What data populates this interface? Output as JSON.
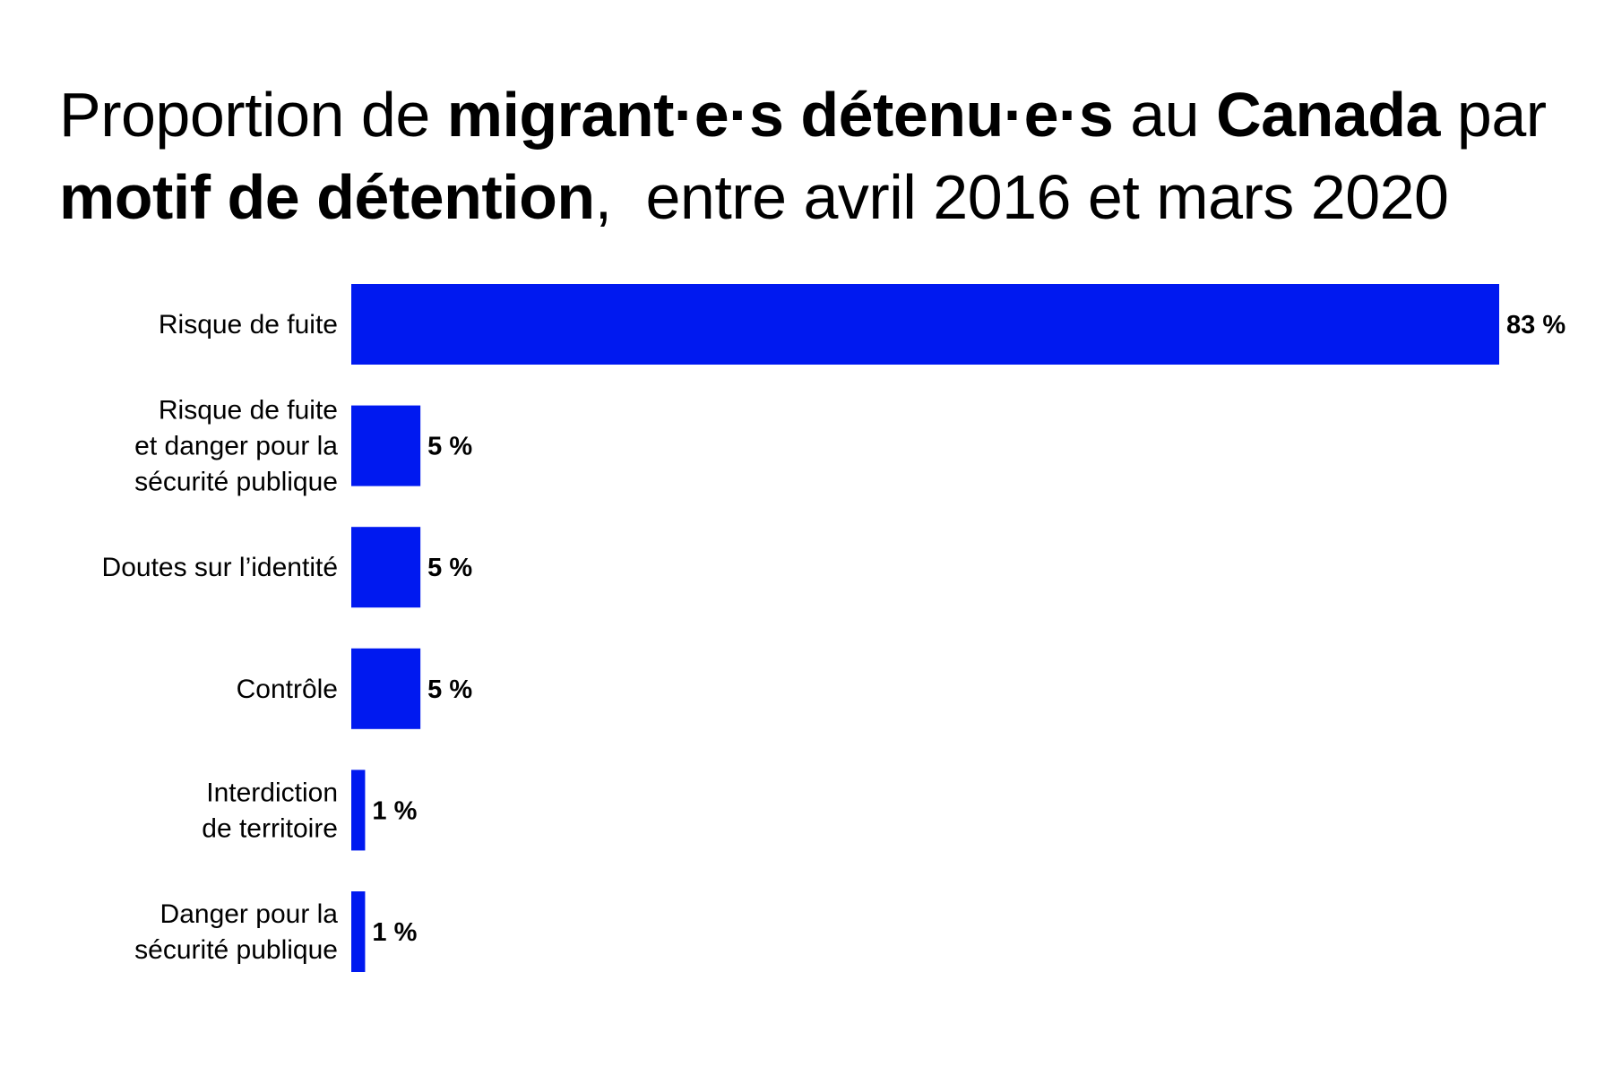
{
  "title": {
    "parts": [
      {
        "text": "Proportion de ",
        "bold": false
      },
      {
        "text": "migrant·e·s détenu·e·s",
        "bold": true
      },
      {
        "text": " au ",
        "bold": false
      },
      {
        "text": "Canada",
        "bold": true
      },
      {
        "text": " par ",
        "bold": false
      },
      {
        "text": "motif de détention",
        "bold": true
      },
      {
        "text": ",  entre avril 2016 et mars 2020",
        "bold": false
      }
    ]
  },
  "chart_data": {
    "type": "bar",
    "orientation": "horizontal",
    "title": "Proportion de migrant·e·s détenu·e·s au Canada par motif de détention, entre avril 2016 et mars 2020",
    "categories": [
      [
        "Risque de fuite"
      ],
      [
        "Risque de fuite",
        "et danger pour la",
        "sécurité publique"
      ],
      [
        "Doutes sur l’identité"
      ],
      [
        "Contrôle"
      ],
      [
        "Interdiction",
        "de territoire"
      ],
      [
        "Danger pour la",
        "sécurité publique"
      ]
    ],
    "values": [
      83,
      5,
      5,
      5,
      1,
      1
    ],
    "data_labels": [
      "83 %",
      "5 %",
      "5 %",
      "5 %",
      "1 %",
      "1 %"
    ],
    "unit": "%",
    "xlim": [
      0,
      83
    ],
    "grid": false,
    "axes_visible": false,
    "bar_color": "#0019F0"
  }
}
